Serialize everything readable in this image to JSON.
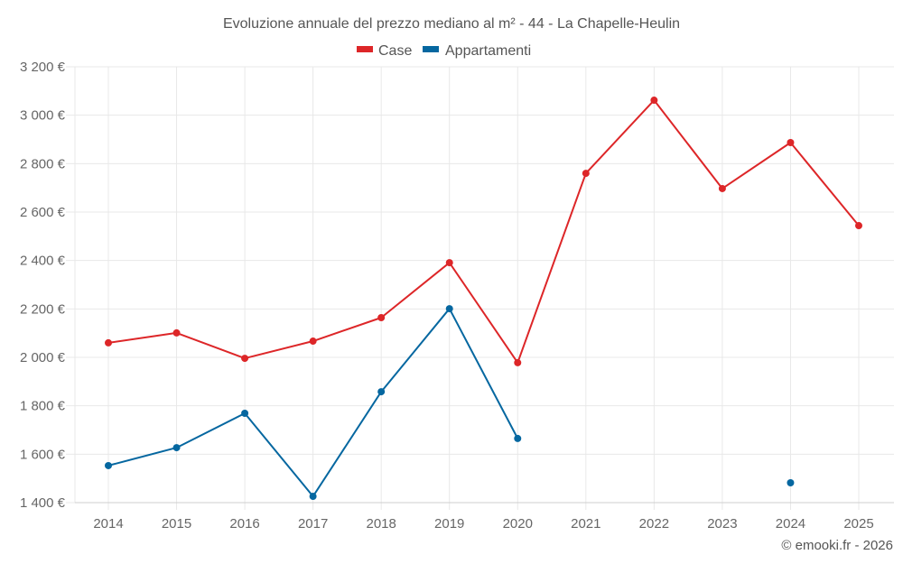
{
  "chart_data": {
    "type": "line",
    "title": "Evoluzione annuale del prezzo mediano al m² - 44 - La Chapelle-Heulin",
    "xlabel": "",
    "ylabel": "",
    "categories": [
      "2014",
      "2015",
      "2016",
      "2017",
      "2018",
      "2019",
      "2020",
      "2021",
      "2022",
      "2023",
      "2024",
      "2025"
    ],
    "ylim": [
      1400,
      3200
    ],
    "yticks": [
      1400,
      1600,
      1800,
      2000,
      2200,
      2400,
      2600,
      2800,
      3000,
      3200
    ],
    "ytick_labels": [
      "1 400 €",
      "1 600 €",
      "1 800 €",
      "2 000 €",
      "2 200 €",
      "2 400 €",
      "2 600 €",
      "2 800 €",
      "3 000 €",
      "3 200 €"
    ],
    "grid": true,
    "legend_position": "top-center",
    "series": [
      {
        "name": "Case",
        "color": "#dd2628",
        "values": [
          2060,
          2101,
          1996,
          2067,
          2164,
          2391,
          1978,
          2760,
          3062,
          2697,
          2887,
          2544
        ]
      },
      {
        "name": "Appartamenti",
        "color": "#0567a0",
        "values": [
          1553,
          1627,
          1769,
          1426,
          1858,
          2201,
          1665,
          null,
          null,
          null,
          1482,
          null
        ]
      }
    ],
    "credit": "© emooki.fr - 2026"
  }
}
